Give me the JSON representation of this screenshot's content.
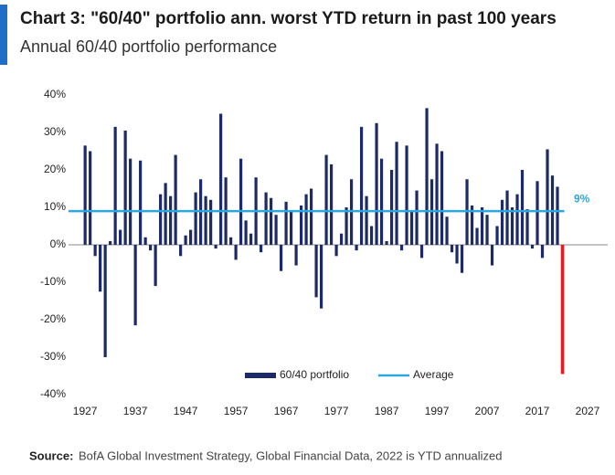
{
  "chart_data": {
    "type": "bar",
    "title": "Chart 3: \"60/40\" portfolio ann. worst YTD return in past 100 years",
    "subtitle": "Annual 60/40 portfolio performance",
    "source_label": "Source:",
    "source": "BofA Global Investment Strategy, Global Financial Data, 2022 is YTD annualized",
    "x": [
      1927,
      1928,
      1929,
      1930,
      1931,
      1932,
      1933,
      1934,
      1935,
      1936,
      1937,
      1938,
      1939,
      1940,
      1941,
      1942,
      1943,
      1944,
      1945,
      1946,
      1947,
      1948,
      1949,
      1950,
      1951,
      1952,
      1953,
      1954,
      1955,
      1956,
      1957,
      1958,
      1959,
      1960,
      1961,
      1962,
      1963,
      1964,
      1965,
      1966,
      1967,
      1968,
      1969,
      1970,
      1971,
      1972,
      1973,
      1974,
      1975,
      1976,
      1977,
      1978,
      1979,
      1980,
      1981,
      1982,
      1983,
      1984,
      1985,
      1986,
      1987,
      1988,
      1989,
      1990,
      1991,
      1992,
      1993,
      1994,
      1995,
      1996,
      1997,
      1998,
      1999,
      2000,
      2001,
      2002,
      2003,
      2004,
      2005,
      2006,
      2007,
      2008,
      2009,
      2010,
      2011,
      2012,
      2013,
      2014,
      2015,
      2016,
      2017,
      2018,
      2019,
      2020,
      2021,
      2022
    ],
    "series": [
      {
        "name": "60/40 portfolio",
        "color": "#1c2a66",
        "values": [
          26.5,
          25,
          -3,
          -12.5,
          -30,
          1,
          31.5,
          4,
          30.5,
          23,
          -21.5,
          22.5,
          2,
          -1.5,
          -11,
          13.5,
          16.5,
          13,
          24,
          -3,
          2.5,
          4,
          14,
          17.5,
          13,
          12,
          -1,
          35,
          18,
          2,
          -4,
          23,
          6.5,
          3,
          18,
          -2,
          14,
          12.5,
          8,
          -7,
          11.5,
          9,
          -5.5,
          10.5,
          13.5,
          15,
          -14,
          -17,
          24,
          21.5,
          -3,
          3,
          10,
          17.5,
          -1.5,
          31.5,
          13,
          5,
          32.5,
          23,
          1,
          20,
          27.5,
          -1.5,
          26.5,
          9,
          14.5,
          -3.5,
          36.5,
          17.5,
          27,
          25,
          7.5,
          -2,
          -5,
          -7.5,
          17.5,
          10.5,
          4.5,
          10,
          8,
          -5.5,
          5,
          12,
          14.5,
          10,
          13.5,
          20,
          9.5,
          -1,
          17,
          -3.5,
          25.5,
          18.5,
          15.5,
          -34.5
        ]
      },
      {
        "name": "Average",
        "color": "#2ba6de",
        "value": 9,
        "value_label": "9%"
      }
    ],
    "highlight": {
      "x": 2022,
      "color": "#e31b23"
    },
    "xlim": [
      1923.7,
      2031
    ],
    "xticks": [
      1927,
      1937,
      1947,
      1957,
      1967,
      1977,
      1987,
      1997,
      2007,
      2017,
      2027
    ],
    "ylim": [
      -40,
      40
    ],
    "yticks": [
      {
        "value": 40,
        "label": "40%"
      },
      {
        "value": 30,
        "label": "30%"
      },
      {
        "value": 20,
        "label": "20%"
      },
      {
        "value": 10,
        "label": "10%"
      },
      {
        "value": 0,
        "label": "0%"
      },
      {
        "value": -10,
        "label": "-10%"
      },
      {
        "value": -20,
        "label": "-20%"
      },
      {
        "value": -30,
        "label": "-30%"
      },
      {
        "value": -40,
        "label": "-40%"
      }
    ]
  }
}
